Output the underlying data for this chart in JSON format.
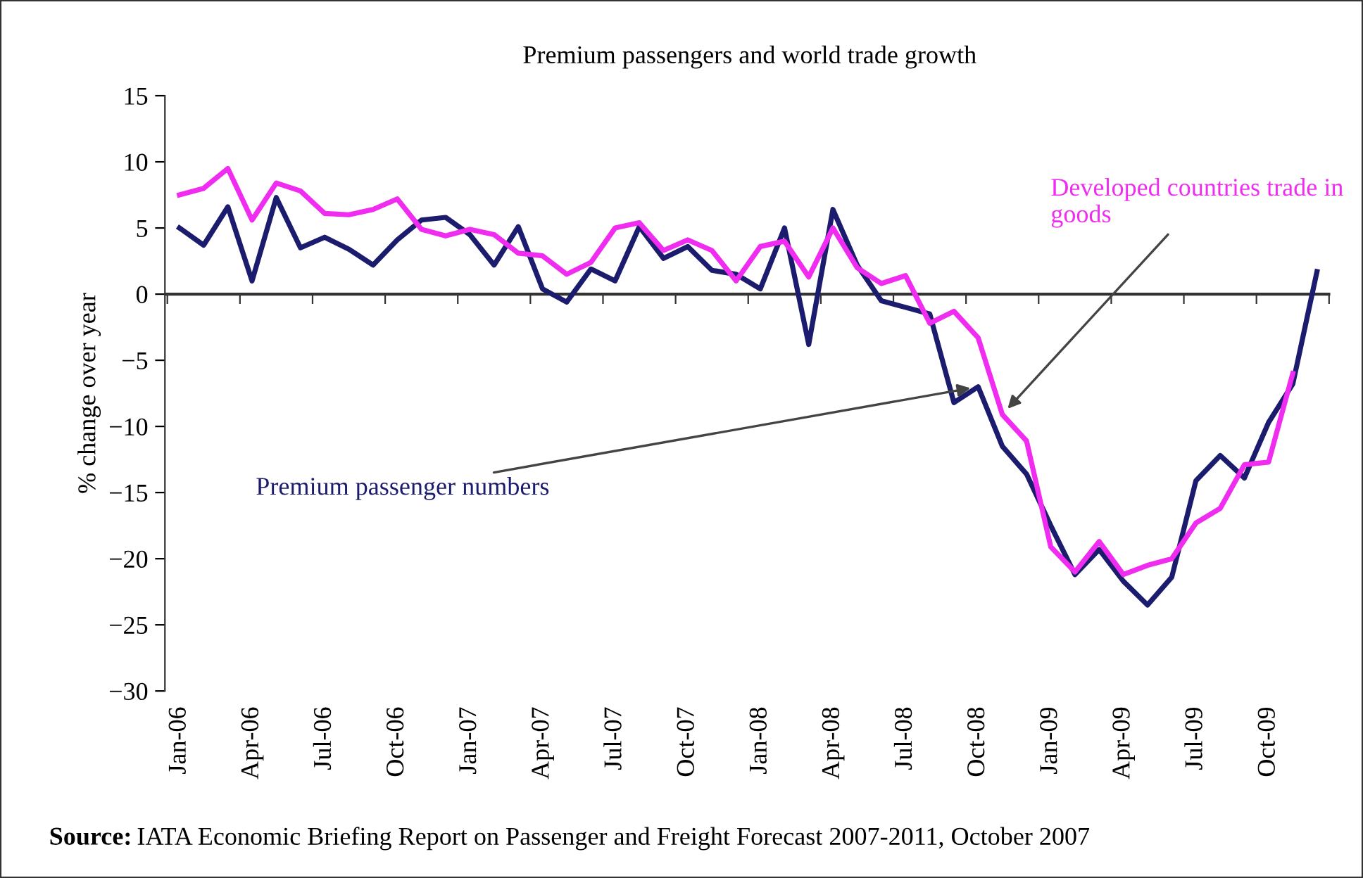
{
  "chart_data": {
    "type": "line",
    "title": "Premium passengers and world trade growth",
    "ylabel": "% change over year",
    "categories": [
      "Jan-06",
      null,
      null,
      "Apr-06",
      null,
      null,
      "Jul-06",
      null,
      null,
      "Oct-06",
      null,
      null,
      "Jan-07",
      null,
      null,
      "Apr-07",
      null,
      null,
      "Jul-07",
      null,
      null,
      "Oct-07",
      null,
      null,
      "Jan-08",
      null,
      null,
      "Apr-08",
      null,
      null,
      "Jul-08",
      null,
      null,
      "Oct-08",
      null,
      null,
      "Jan-09",
      null,
      null,
      "Apr-09",
      null,
      null,
      "Jul-09",
      null,
      null,
      "Oct-09",
      null,
      null
    ],
    "series": [
      {
        "name": "Premium passenger numbers",
        "color": "#1c1c6e",
        "values": [
          5.0,
          3.7,
          6.6,
          1.0,
          7.3,
          3.5,
          4.3,
          3.4,
          2.2,
          4.1,
          5.6,
          5.8,
          4.5,
          2.2,
          5.1,
          0.4,
          -0.6,
          1.9,
          1.0,
          5.1,
          2.7,
          3.6,
          1.8,
          1.5,
          0.4,
          5.0,
          -3.8,
          6.4,
          2.2,
          -0.5,
          -1.0,
          -1.5,
          -8.2,
          -7.0,
          -11.5,
          -13.6,
          -17.5,
          -21.2,
          -19.3,
          -21.7,
          -23.5,
          -21.4,
          -14.1,
          -12.2,
          -13.9,
          -9.7,
          -6.8,
          1.7
        ]
      },
      {
        "name": "Developed countries trade in goods",
        "color": "#f02cf0",
        "values": [
          7.5,
          8.0,
          9.5,
          5.6,
          8.4,
          7.8,
          6.1,
          6.0,
          6.4,
          7.2,
          4.9,
          4.4,
          4.9,
          4.5,
          3.1,
          2.9,
          1.5,
          2.4,
          5.0,
          5.4,
          3.3,
          4.1,
          3.3,
          1.0,
          3.6,
          4.0,
          1.3,
          5.0,
          2.0,
          0.8,
          1.4,
          -2.2,
          -1.3,
          -3.3,
          -9.1,
          -11.1,
          -19.1,
          -21.0,
          -18.7,
          -21.2,
          -20.5,
          -20.0,
          -17.3,
          -16.2,
          -12.9,
          -12.7,
          -6.0,
          null
        ]
      }
    ],
    "ylim": [
      -30,
      15
    ],
    "yticks": [
      {
        "value": -30,
        "label": "−30"
      },
      {
        "value": -25,
        "label": "−25"
      },
      {
        "value": -20,
        "label": "−20"
      },
      {
        "value": -15,
        "label": "−15"
      },
      {
        "value": -10,
        "label": "−10"
      },
      {
        "value": -5,
        "label": "−5"
      },
      0,
      5,
      10,
      15
    ],
    "ref_lines": [
      {
        "axis": "y",
        "value": 0,
        "color": "#333333",
        "line_style": "solid"
      }
    ],
    "grid": false,
    "legend": false,
    "marker": "none",
    "line_style": "solid",
    "annotations": [
      "Source: IATA Economic Briefing Report on Passenger and Freight Forecast 2007-2011, October 2007"
    ]
  }
}
